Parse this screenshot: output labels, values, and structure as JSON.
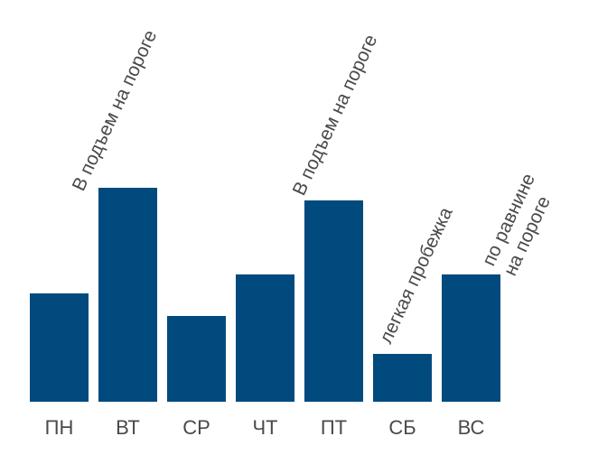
{
  "chart_data": {
    "type": "bar",
    "categories": [
      "ПН",
      "ВТ",
      "СР",
      "ЧТ",
      "ПТ",
      "СБ",
      "ВС"
    ],
    "values": [
      120,
      237,
      95,
      141,
      223,
      53,
      141
    ],
    "bar_color": "#004a7e",
    "label_color": "#4a4a4a",
    "annotations": [
      {
        "category": "ВТ",
        "lines": [
          "В подъем на пороге"
        ]
      },
      {
        "category": "ПТ",
        "lines": [
          "В подъем на пороге"
        ]
      },
      {
        "category": "СБ",
        "lines": [
          "легкая пробежка"
        ]
      },
      {
        "category": "ВС",
        "lines": [
          "по равнине",
          "на пороге"
        ]
      }
    ],
    "title": "",
    "xlabel": "",
    "ylabel": "",
    "ylim": [
      0,
      260
    ],
    "grid": false,
    "legend": "none"
  }
}
